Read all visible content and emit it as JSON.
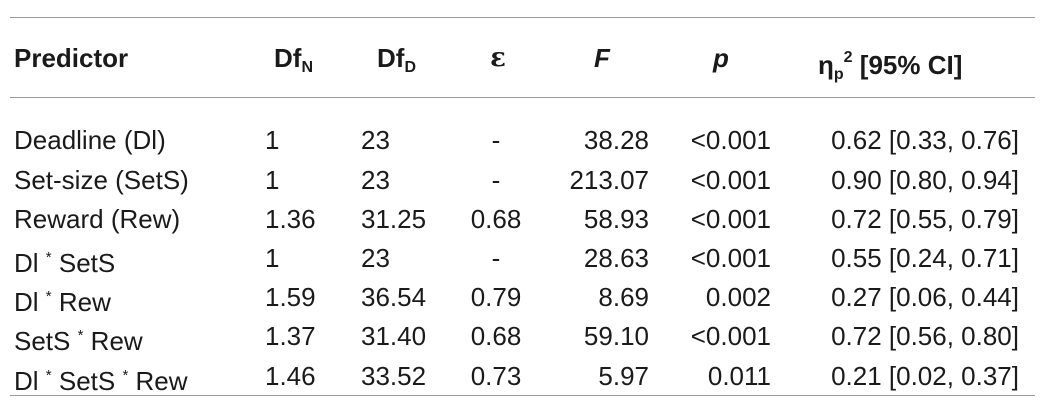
{
  "table": {
    "headers": {
      "predictor": "Predictor",
      "dfn_main": "Df",
      "dfn_sub": "N",
      "dfd_main": "Df",
      "dfd_sub": "D",
      "epsilon": "ε",
      "f": "F",
      "p": "p",
      "eta_main": "η",
      "eta_sub": "p",
      "eta_sup": "2",
      "eta_ci": " [95% CI]"
    },
    "rows": [
      {
        "predictor": [
          "Deadline (Dl)"
        ],
        "dfn": "1",
        "dfd": "23",
        "epsilon": "-",
        "f": "38.28",
        "p": "<0.001",
        "eta": "0.62 [0.33, 0.76]"
      },
      {
        "predictor": [
          "Set-size (SetS)"
        ],
        "dfn": "1",
        "dfd": "23",
        "epsilon": "-",
        "f": "213.07",
        "p": "<0.001",
        "eta": "0.90 [0.80, 0.94]"
      },
      {
        "predictor": [
          "Reward (Rew)"
        ],
        "dfn": "1.36",
        "dfd": "31.25",
        "epsilon": "0.68",
        "f": "58.93",
        "p": "<0.001",
        "eta": "0.72 [0.55, 0.79]"
      },
      {
        "predictor": [
          "Dl ",
          "*",
          " SetS"
        ],
        "dfn": "1",
        "dfd": "23",
        "epsilon": "-",
        "f": "28.63",
        "p": "<0.001",
        "eta": "0.55 [0.24, 0.71]"
      },
      {
        "predictor": [
          "Dl ",
          "*",
          " Rew"
        ],
        "dfn": "1.59",
        "dfd": "36.54",
        "epsilon": "0.79",
        "f": "8.69",
        "p": "0.002",
        "eta": "0.27 [0.06, 0.44]"
      },
      {
        "predictor": [
          "SetS ",
          "*",
          " Rew"
        ],
        "dfn": "1.37",
        "dfd": "31.40",
        "epsilon": "0.68",
        "f": "59.10",
        "p": "<0.001",
        "eta": "0.72 [0.56, 0.80]"
      },
      {
        "predictor": [
          "Dl ",
          "*",
          " SetS ",
          "*",
          " Rew"
        ],
        "dfn": "1.46",
        "dfd": "33.52",
        "epsilon": "0.73",
        "f": "5.97",
        "p": "0.011",
        "eta": "0.21 [0.02, 0.37]"
      }
    ]
  }
}
